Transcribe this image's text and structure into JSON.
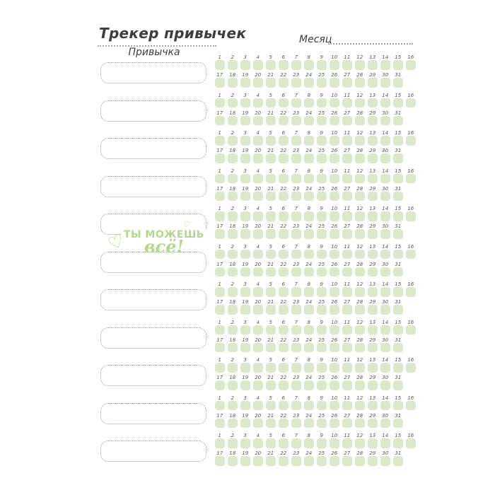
{
  "page": {
    "title": "Трекер привычек",
    "month_label": "Месяц",
    "habit_column_label": "Привычка",
    "motivation": {
      "line1": "ТЫ МОЖЕШЬ",
      "line2": "всё!",
      "heart_glyph": "♡"
    },
    "colors": {
      "day_cell_green": "#dbe8ca",
      "accent_green": "#b2d88c",
      "ink": "#3d3d3d",
      "number_ink": "#58585a",
      "dotted_gray": "#a8a8a8"
    }
  },
  "tracker": {
    "row_count": 11,
    "habit_name_value": "",
    "month_value": "",
    "days_row1": [
      1,
      2,
      3,
      4,
      5,
      6,
      7,
      8,
      9,
      10,
      11,
      12,
      13,
      14,
      15,
      16
    ],
    "days_row2": [
      17,
      18,
      19,
      20,
      21,
      22,
      23,
      24,
      25,
      26,
      27,
      28,
      29,
      30,
      31
    ]
  }
}
